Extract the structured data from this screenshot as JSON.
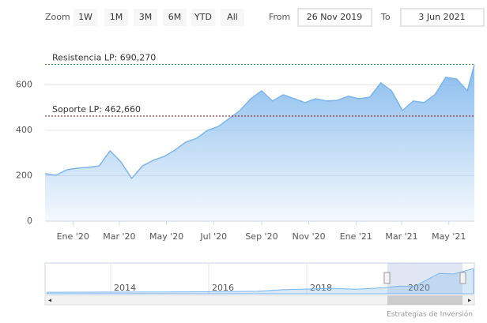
{
  "chart_data": {
    "type": "area",
    "x": [
      "2019-11-26",
      "2019-12-10",
      "2019-12-24",
      "2020-01-07",
      "2020-01-21",
      "2020-02-04",
      "2020-02-18",
      "2020-03-03",
      "2020-03-17",
      "2020-03-31",
      "2020-04-14",
      "2020-04-28",
      "2020-05-12",
      "2020-05-26",
      "2020-06-09",
      "2020-06-23",
      "2020-07-07",
      "2020-07-21",
      "2020-08-04",
      "2020-08-18",
      "2020-09-01",
      "2020-09-15",
      "2020-09-29",
      "2020-10-13",
      "2020-10-27",
      "2020-11-10",
      "2020-11-24",
      "2020-12-08",
      "2020-12-22",
      "2021-01-05",
      "2021-01-19",
      "2021-02-02",
      "2021-02-16",
      "2021-03-02",
      "2021-03-16",
      "2021-03-30",
      "2021-04-13",
      "2021-04-27",
      "2021-05-11",
      "2021-05-25",
      "2021-06-03"
    ],
    "series": [
      {
        "color": "#7cb5ec",
        "values": [
          209,
          202,
          226,
          233,
          237,
          243,
          310,
          261,
          188,
          243,
          268,
          285,
          313,
          348,
          365,
          400,
          417,
          452,
          487,
          539,
          574,
          529,
          557,
          539,
          522,
          539,
          529,
          532,
          550,
          539,
          546,
          609,
          574,
          487,
          529,
          522,
          557,
          633,
          626,
          574,
          689
        ]
      }
    ],
    "xlim": [
      "2019-11-26",
      "2021-06-03"
    ],
    "xticks": [
      {
        "value": "2020-01-01",
        "label": "Ene '20"
      },
      {
        "value": "2020-03-01",
        "label": "Mar '20"
      },
      {
        "value": "2020-05-01",
        "label": "May '20"
      },
      {
        "value": "2020-07-01",
        "label": "Jul '20"
      },
      {
        "value": "2020-09-01",
        "label": "Sep '20"
      },
      {
        "value": "2020-11-01",
        "label": "Nov '20"
      },
      {
        "value": "2021-01-01",
        "label": "Ene '21"
      },
      {
        "value": "2021-03-01",
        "label": "Mar '21"
      },
      {
        "value": "2021-05-01",
        "label": "May '21"
      }
    ],
    "ylim": [
      0,
      800
    ],
    "yticks": [
      0,
      200,
      400,
      600
    ],
    "grid": true,
    "plot_lines": [
      {
        "label": "Resistencia LP: 690,270",
        "value": 690.27,
        "color": "#2e8b2e"
      },
      {
        "label": "Soporte LP: 462,660",
        "value": 462.66,
        "color": "#8b0000"
      }
    ]
  },
  "range_selector": {
    "zoom_label": "Zoom",
    "buttons": [
      "1W",
      "1M",
      "3M",
      "6M",
      "YTD",
      "All"
    ],
    "from_label": "From",
    "from": "26 Nov 2019",
    "to_label": "To",
    "to": "3 Jun 2021"
  },
  "navigator": {
    "x": [
      2012.7,
      2014,
      2015,
      2016,
      2017,
      2017.5,
      2018,
      2018.5,
      2019,
      2019.5,
      2019.9,
      2020.2,
      2020.7,
      2021,
      2021.4
    ],
    "values": [
      40,
      45,
      50,
      55,
      70,
      110,
      130,
      150,
      125,
      160,
      210,
      200,
      560,
      540,
      690
    ],
    "xlim": [
      2012.66,
      2021.42
    ],
    "xticks": [
      2014,
      2016,
      2018,
      2020
    ],
    "ylim": [
      0,
      800
    ]
  },
  "credits": "Estrategias de Inversión"
}
